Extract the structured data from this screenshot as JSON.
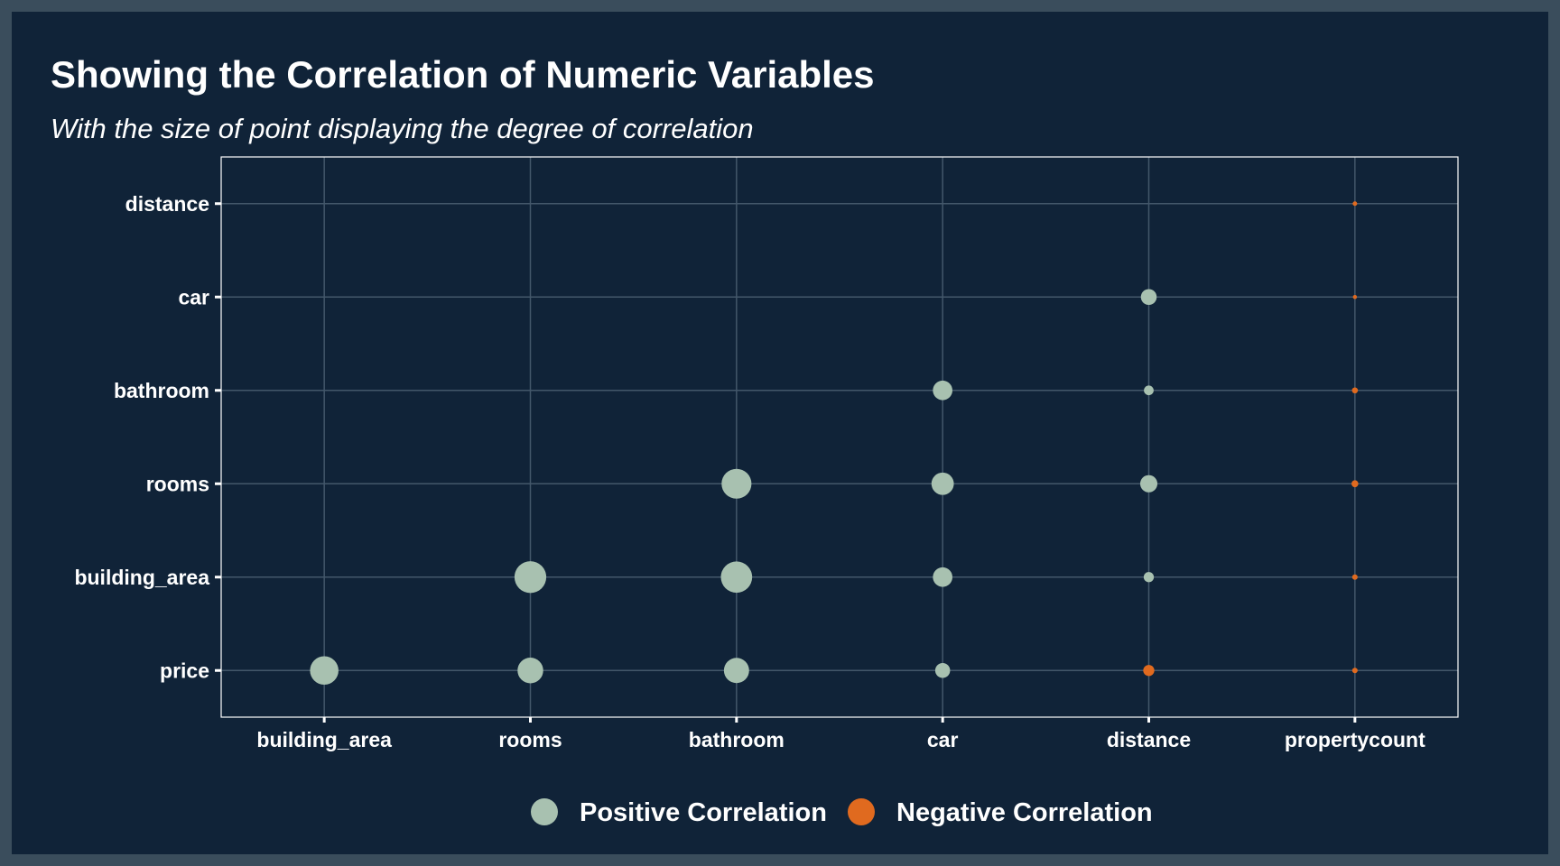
{
  "colors": {
    "background_outer": "#3a4d5c",
    "background_panel": "#102338",
    "grid": "#43576a",
    "positive": "#a8c1b0",
    "negative": "#e06a1f",
    "text": "#ffffff"
  },
  "chart_data": {
    "type": "scatter",
    "title": "Showing the Correlation of Numeric Variables",
    "subtitle": "With the size of point displaying the degree of correlation",
    "xlabel": "",
    "ylabel": "",
    "x_categories": [
      "building_area",
      "rooms",
      "bathroom",
      "car",
      "distance",
      "propertycount"
    ],
    "y_categories": [
      "price",
      "building_area",
      "rooms",
      "bathroom",
      "car",
      "distance"
    ],
    "grid": true,
    "legend_position": "bottom",
    "legend": [
      {
        "key": "positive",
        "label": "Positive Correlation"
      },
      {
        "key": "negative",
        "label": "Negative Correlation"
      }
    ],
    "points": [
      {
        "x": "building_area",
        "y": "price",
        "corr": 0.53
      },
      {
        "x": "rooms",
        "y": "price",
        "corr": 0.47
      },
      {
        "x": "bathroom",
        "y": "price",
        "corr": 0.46
      },
      {
        "x": "car",
        "y": "price",
        "corr": 0.24
      },
      {
        "x": "distance",
        "y": "price",
        "corr": -0.16
      },
      {
        "x": "propertycount",
        "y": "price",
        "corr": -0.04
      },
      {
        "x": "rooms",
        "y": "building_area",
        "corr": 0.6
      },
      {
        "x": "bathroom",
        "y": "building_area",
        "corr": 0.59
      },
      {
        "x": "car",
        "y": "building_area",
        "corr": 0.34
      },
      {
        "x": "distance",
        "y": "building_area",
        "corr": 0.14
      },
      {
        "x": "propertycount",
        "y": "building_area",
        "corr": -0.04
      },
      {
        "x": "bathroom",
        "y": "rooms",
        "corr": 0.56
      },
      {
        "x": "car",
        "y": "rooms",
        "corr": 0.4
      },
      {
        "x": "distance",
        "y": "rooms",
        "corr": 0.29
      },
      {
        "x": "propertycount",
        "y": "rooms",
        "corr": -0.07
      },
      {
        "x": "car",
        "y": "bathroom",
        "corr": 0.34
      },
      {
        "x": "distance",
        "y": "bathroom",
        "corr": 0.13
      },
      {
        "x": "propertycount",
        "y": "bathroom",
        "corr": -0.05
      },
      {
        "x": "distance",
        "y": "car",
        "corr": 0.26
      },
      {
        "x": "propertycount",
        "y": "car",
        "corr": -0.01
      },
      {
        "x": "propertycount",
        "y": "distance",
        "corr": -0.02
      }
    ]
  }
}
